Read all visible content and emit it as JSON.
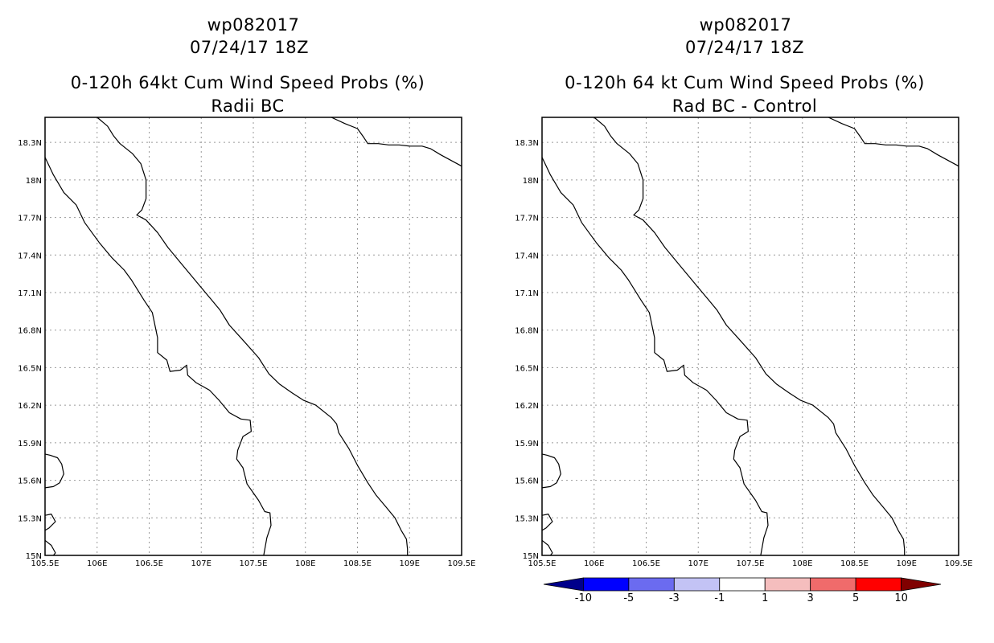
{
  "chart_data": [
    {
      "type": "heatmap",
      "storm_id": "wp082017",
      "datetime": "07/24/17 18Z",
      "title": "0-120h 64kt Cum Wind Speed Probs (%)",
      "subtitle": "Radii BC",
      "xlim": [
        105.5,
        109.5
      ],
      "ylim": [
        15.0,
        18.5
      ],
      "x_ticks": [
        105.5,
        106,
        106.5,
        107,
        107.5,
        108,
        108.5,
        109,
        109.5
      ],
      "x_tick_labels": [
        "105.5E",
        "106E",
        "106.5E",
        "107E",
        "107.5E",
        "108E",
        "108.5E",
        "109E",
        "109.5E"
      ],
      "y_ticks": [
        15.0,
        15.3,
        15.6,
        15.9,
        16.2,
        16.5,
        16.8,
        17.1,
        17.4,
        17.7,
        18.0,
        18.3
      ],
      "y_tick_labels": [
        "15N",
        "15.3N",
        "15.6N",
        "15.9N",
        "16.2N",
        "16.5N",
        "16.8N",
        "17.1N",
        "17.4N",
        "17.7N",
        "18N",
        "18.3N"
      ],
      "grid": true,
      "values": []
    },
    {
      "type": "heatmap",
      "storm_id": "wp082017",
      "datetime": "07/24/17 18Z",
      "title": "0-120h 64 kt Cum Wind Speed Probs (%)",
      "subtitle": "Rad BC - Control",
      "xlim": [
        105.5,
        109.5
      ],
      "ylim": [
        15.0,
        18.5
      ],
      "x_ticks": [
        105.5,
        106,
        106.5,
        107,
        107.5,
        108,
        108.5,
        109,
        109.5
      ],
      "x_tick_labels": [
        "105.5E",
        "106E",
        "106.5E",
        "107E",
        "107.5E",
        "108E",
        "108.5E",
        "109E",
        "109.5E"
      ],
      "y_ticks": [
        15.0,
        15.3,
        15.6,
        15.9,
        16.2,
        16.5,
        16.8,
        17.1,
        17.4,
        17.7,
        18.0,
        18.3
      ],
      "y_tick_labels": [
        "15N",
        "15.3N",
        "15.6N",
        "15.9N",
        "16.2N",
        "16.5N",
        "16.8N",
        "17.1N",
        "17.4N",
        "17.7N",
        "18N",
        "18.3N"
      ],
      "grid": true,
      "values": [],
      "colorbar": {
        "colors": [
          "#00008b",
          "#0000ff",
          "#6b6bf0",
          "#c3c3f5",
          "#ffffff",
          "#f5bebe",
          "#f06b6b",
          "#ff0000",
          "#800000"
        ],
        "labels": [
          "-10",
          "-5",
          "-3",
          "-1",
          "1",
          "3",
          "5",
          "10"
        ]
      }
    }
  ],
  "coastlines": {
    "coast_main": [
      [
        105.5,
        18.18
      ],
      [
        105.58,
        18.04
      ],
      [
        105.68,
        17.9
      ],
      [
        105.8,
        17.8
      ],
      [
        105.88,
        17.66
      ],
      [
        106.02,
        17.5
      ],
      [
        106.14,
        17.38
      ],
      [
        106.26,
        17.28
      ],
      [
        106.33,
        17.2
      ],
      [
        106.45,
        17.04
      ],
      [
        106.53,
        16.94
      ],
      [
        106.58,
        16.74
      ],
      [
        106.58,
        16.62
      ],
      [
        106.67,
        16.56
      ],
      [
        106.7,
        16.47
      ],
      [
        106.8,
        16.48
      ],
      [
        106.86,
        16.52
      ],
      [
        106.87,
        16.44
      ],
      [
        106.95,
        16.38
      ],
      [
        107.08,
        16.32
      ],
      [
        107.17,
        16.24
      ],
      [
        107.27,
        16.14
      ],
      [
        107.38,
        16.09
      ],
      [
        107.47,
        16.08
      ],
      [
        107.48,
        15.99
      ],
      [
        107.4,
        15.95
      ],
      [
        107.35,
        15.84
      ],
      [
        107.34,
        15.77
      ],
      [
        107.4,
        15.7
      ],
      [
        107.44,
        15.57
      ],
      [
        107.55,
        15.44
      ],
      [
        107.61,
        15.35
      ],
      [
        107.66,
        15.34
      ],
      [
        107.67,
        15.24
      ],
      [
        107.63,
        15.14
      ],
      [
        107.6,
        15.0
      ]
    ],
    "coast_north": [
      [
        106.0,
        18.5
      ],
      [
        106.1,
        18.43
      ],
      [
        106.16,
        18.35
      ],
      [
        106.22,
        18.29
      ],
      [
        106.34,
        18.21
      ],
      [
        106.42,
        18.13
      ],
      [
        106.47,
        18.0
      ],
      [
        106.47,
        17.85
      ],
      [
        106.43,
        17.76
      ],
      [
        106.38,
        17.72
      ],
      [
        106.47,
        17.68
      ],
      [
        106.58,
        17.58
      ],
      [
        106.68,
        17.46
      ],
      [
        106.82,
        17.32
      ],
      [
        106.98,
        17.16
      ],
      [
        107.1,
        17.04
      ],
      [
        107.18,
        16.96
      ],
      [
        107.27,
        16.84
      ],
      [
        107.4,
        16.72
      ],
      [
        107.55,
        16.58
      ],
      [
        107.65,
        16.45
      ],
      [
        107.75,
        16.37
      ],
      [
        107.87,
        16.3
      ],
      [
        107.98,
        16.24
      ],
      [
        108.1,
        16.2
      ],
      [
        108.25,
        16.1
      ],
      [
        108.3,
        16.05
      ],
      [
        108.32,
        15.98
      ],
      [
        108.42,
        15.85
      ],
      [
        108.5,
        15.72
      ],
      [
        108.6,
        15.58
      ],
      [
        108.68,
        15.48
      ],
      [
        108.78,
        15.38
      ],
      [
        108.86,
        15.3
      ],
      [
        108.92,
        15.2
      ],
      [
        108.97,
        15.13
      ],
      [
        108.98,
        15.05
      ],
      [
        108.98,
        15.0
      ]
    ],
    "coast_ne": [
      [
        108.25,
        18.5
      ],
      [
        108.38,
        18.45
      ],
      [
        108.5,
        18.41
      ],
      [
        108.56,
        18.34
      ],
      [
        108.6,
        18.29
      ],
      [
        108.7,
        18.29
      ],
      [
        108.8,
        18.28
      ],
      [
        108.9,
        18.28
      ],
      [
        109.0,
        18.27
      ],
      [
        109.12,
        18.27
      ],
      [
        109.2,
        18.25
      ],
      [
        109.3,
        18.2
      ],
      [
        109.5,
        18.11
      ]
    ],
    "island_sw_a": [
      [
        105.5,
        15.81
      ],
      [
        105.55,
        15.8
      ],
      [
        105.62,
        15.78
      ],
      [
        105.66,
        15.73
      ],
      [
        105.68,
        15.65
      ],
      [
        105.64,
        15.58
      ],
      [
        105.58,
        15.55
      ],
      [
        105.5,
        15.54
      ]
    ],
    "island_sw_b": [
      [
        105.5,
        15.32
      ],
      [
        105.56,
        15.33
      ],
      [
        105.6,
        15.27
      ],
      [
        105.54,
        15.22
      ],
      [
        105.5,
        15.2
      ]
    ],
    "island_sw_c": [
      [
        105.5,
        15.12
      ],
      [
        105.56,
        15.08
      ],
      [
        105.6,
        15.02
      ],
      [
        105.58,
        15.0
      ]
    ]
  }
}
